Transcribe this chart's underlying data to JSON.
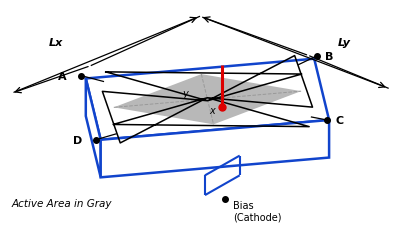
{
  "background_color": "#ffffff",
  "fig_width": 4.0,
  "fig_height": 2.4,
  "dpi": 100,
  "blue_color": "#1144cc",
  "gray_color": "#b8b8b8",
  "black": "#000000",
  "red": "#dd0000",
  "active_area_label": "Active Area in Gray",
  "bias_label": "Bias\n(Cathode)",
  "lx_label": "Lx",
  "ly_label": "Ly"
}
